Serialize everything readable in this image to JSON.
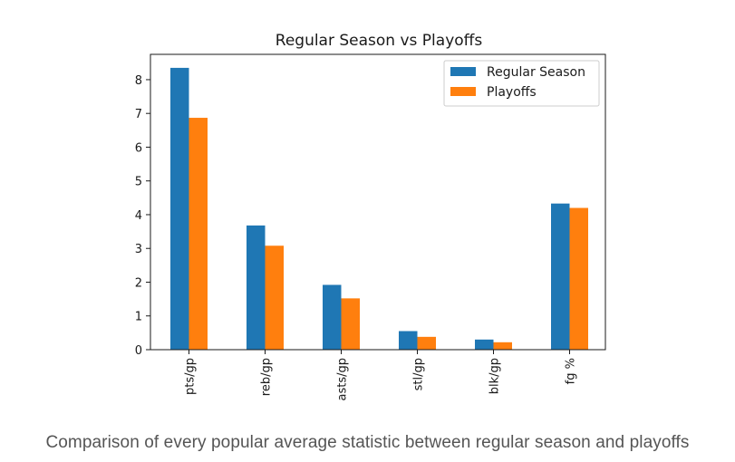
{
  "chart_data": {
    "type": "bar",
    "title": "Regular Season vs Playoffs",
    "xlabel": "",
    "ylabel": "",
    "categories": [
      "pts/gp",
      "reb/gp",
      "asts/gp",
      "stl/gp",
      "blk/gp",
      "fg %"
    ],
    "series": [
      {
        "name": "Regular Season",
        "color": "#1f77b4",
        "values": [
          8.35,
          3.68,
          1.92,
          0.55,
          0.3,
          4.33
        ]
      },
      {
        "name": "Playoffs",
        "color": "#ff7f0e",
        "values": [
          6.87,
          3.08,
          1.52,
          0.38,
          0.22,
          4.2
        ]
      }
    ],
    "ylim": [
      0,
      8.75
    ],
    "yticks": [
      0,
      1,
      2,
      3,
      4,
      5,
      6,
      7,
      8
    ],
    "grid": false,
    "legend_position": "top-right"
  },
  "caption": "Comparison of every popular average statistic between regular season and playoffs"
}
